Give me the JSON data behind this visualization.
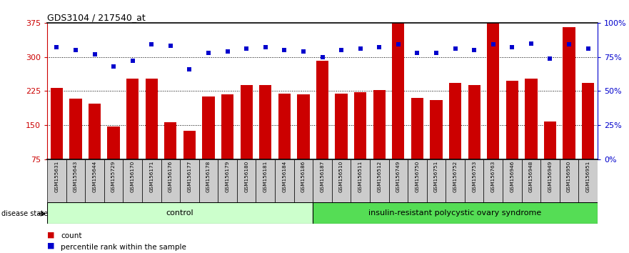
{
  "title": "GDS3104 / 217540_at",
  "samples": [
    "GSM155631",
    "GSM155643",
    "GSM155644",
    "GSM155729",
    "GSM156170",
    "GSM156171",
    "GSM156176",
    "GSM156177",
    "GSM156178",
    "GSM156179",
    "GSM156180",
    "GSM156181",
    "GSM156184",
    "GSM156186",
    "GSM156187",
    "GSM156510",
    "GSM156511",
    "GSM156512",
    "GSM156749",
    "GSM156750",
    "GSM156751",
    "GSM156752",
    "GSM156753",
    "GSM156763",
    "GSM156946",
    "GSM156948",
    "GSM156949",
    "GSM156950",
    "GSM156951"
  ],
  "bar_values": [
    232,
    208,
    198,
    148,
    253,
    253,
    157,
    138,
    213,
    218,
    238,
    238,
    220,
    218,
    292,
    220,
    223,
    227,
    375,
    210,
    205,
    243,
    238,
    375,
    248,
    252,
    158,
    365,
    243
  ],
  "dot_pct": [
    82,
    80,
    77,
    68,
    72,
    84,
    83,
    66,
    78,
    79,
    81,
    82,
    80,
    79,
    75,
    80,
    81,
    82,
    84,
    78,
    78,
    81,
    80,
    84,
    82,
    85,
    74,
    84,
    81
  ],
  "n_control": 14,
  "group_labels": [
    "control",
    "insulin-resistant polycystic ovary syndrome"
  ],
  "ymin": 75,
  "ymax": 375,
  "rmin": 0,
  "rmax": 100,
  "yticks_left": [
    75,
    150,
    225,
    300,
    375
  ],
  "yticks_right": [
    0,
    25,
    50,
    75,
    100
  ],
  "bar_color": "#cc0000",
  "dot_color": "#0000cc",
  "control_bg": "#ccffcc",
  "disease_bg": "#55dd55",
  "xlabel_bg": "#cccccc",
  "legend_count_color": "#cc0000",
  "legend_dot_color": "#0000cc"
}
